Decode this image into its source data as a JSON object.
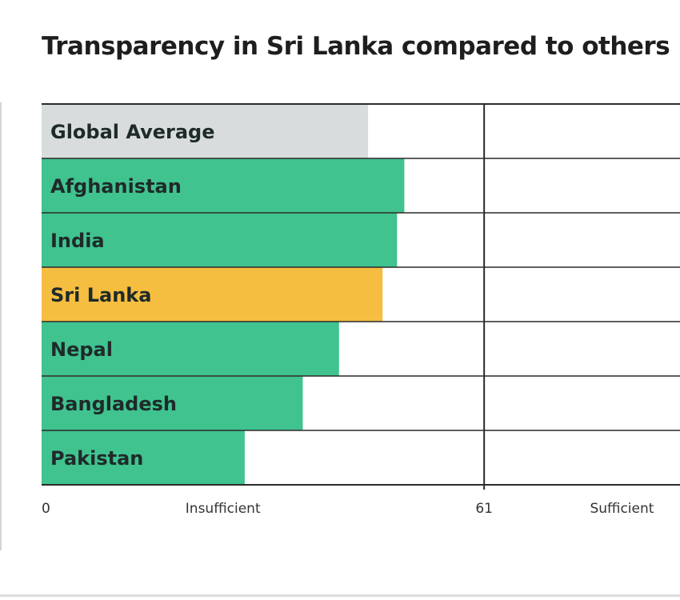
{
  "chart_data": {
    "type": "bar",
    "orientation": "horizontal",
    "title": "Transparency in Sri Lanka compared to others",
    "categories": [
      "Global Average",
      "Afghanistan",
      "India",
      "Sri Lanka",
      "Nepal",
      "Bangladesh",
      "Pakistan"
    ],
    "values": [
      45,
      50,
      49,
      47,
      41,
      36,
      28
    ],
    "xlim": [
      0,
      88
    ],
    "threshold": 61,
    "axis_labels": [
      {
        "value": 0,
        "label": "0"
      },
      {
        "value": 25,
        "label": "Insufficient"
      },
      {
        "value": 61,
        "label": "61"
      },
      {
        "value": 80,
        "label": "Sufficient"
      }
    ],
    "colors": {
      "global": "#d8dcdc",
      "country": "#40c38f",
      "highlight": "#f5be40",
      "grid": "#2a2a2a",
      "label": "#1f2a2a",
      "axis_text": "#333333"
    },
    "highlight_category": "Sri Lanka",
    "reference_category": "Global Average"
  }
}
